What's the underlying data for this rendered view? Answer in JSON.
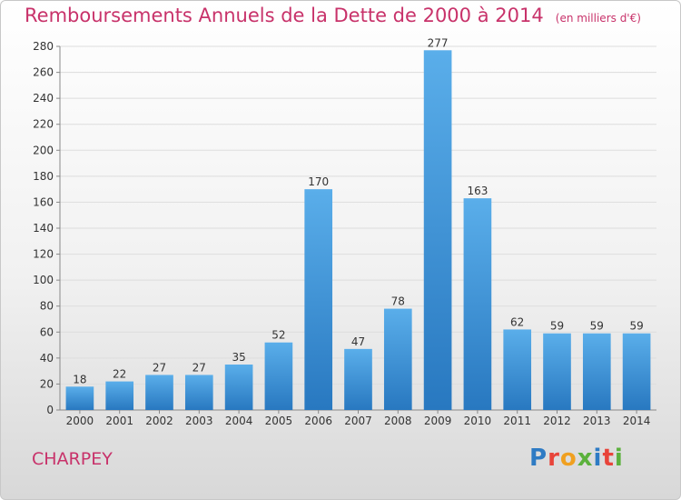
{
  "page": {
    "title": "Remboursements Annuels de la Dette de 2000 à 2014",
    "subtitle": "(en milliers d'€)",
    "commune": "CHARPEY",
    "logo_text": "Proxiti"
  },
  "chart_data": {
    "type": "bar",
    "title": "Remboursements Annuels de la Dette de 2000 à 2014",
    "subtitle": "(en milliers d'€)",
    "xlabel": "",
    "ylabel": "",
    "categories": [
      "2000",
      "2001",
      "2002",
      "2003",
      "2004",
      "2005",
      "2006",
      "2007",
      "2008",
      "2009",
      "2010",
      "2011",
      "2012",
      "2013",
      "2014"
    ],
    "values": [
      18,
      22,
      27,
      27,
      35,
      52,
      170,
      47,
      78,
      277,
      163,
      62,
      59,
      59,
      59
    ],
    "ylim": [
      0,
      280
    ],
    "yticks": [
      0,
      20,
      40,
      60,
      80,
      100,
      120,
      140,
      160,
      180,
      200,
      220,
      240,
      260,
      280
    ],
    "grid": true,
    "data_labels": true,
    "colors": {
      "bar_top": "#5aaeea",
      "bar_bottom": "#2878c0",
      "grid": "#dddddd",
      "title": "#c8326a"
    }
  },
  "logo_colors": [
    "#2e7bc4",
    "#e8443a",
    "#f0a020",
    "#5bb13c",
    "#2e7bc4",
    "#e8443a",
    "#5bb13c"
  ]
}
